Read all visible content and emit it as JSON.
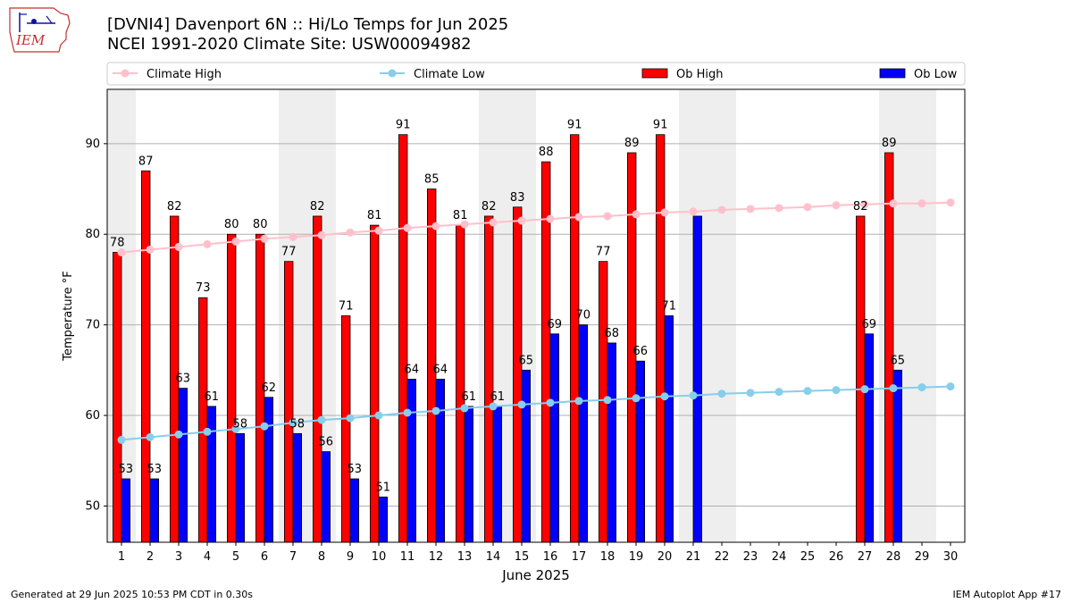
{
  "header": {
    "title_line1": "[DVNI4] Davenport 6N :: Hi/Lo Temps for Jun 2025",
    "title_line2": "NCEI 1991-2020 Climate Site: USW00094982",
    "logo_text": "IEM"
  },
  "footer": {
    "generated": "Generated at 29 Jun 2025 10:53 PM CDT in 0.30s",
    "app": "IEM Autoplot App #17"
  },
  "colors": {
    "ob_high": "#ff0000",
    "ob_low": "#0000ff",
    "climate_high": "#ffc0cb",
    "climate_low": "#87ceeb",
    "weekend_band": "#eeeeee",
    "grid": "#b0b0b0"
  },
  "chart_data": {
    "type": "bar",
    "xlabel": "June 2025",
    "ylabel": "Temperature °F",
    "ylim": [
      46,
      96
    ],
    "yticks": [
      50,
      60,
      70,
      80,
      90
    ],
    "grid": "horizontal",
    "legend_placement": "top",
    "categories": [
      1,
      2,
      3,
      4,
      5,
      6,
      7,
      8,
      9,
      10,
      11,
      12,
      13,
      14,
      15,
      16,
      17,
      18,
      19,
      20,
      21,
      22,
      23,
      24,
      25,
      26,
      27,
      28,
      29,
      30
    ],
    "weekend_days": [
      1,
      7,
      8,
      14,
      15,
      21,
      22,
      28,
      29
    ],
    "series": [
      {
        "name": "Climate High",
        "kind": "line",
        "values": [
          78.0,
          78.3,
          78.6,
          78.9,
          79.2,
          79.5,
          79.7,
          79.9,
          80.2,
          80.4,
          80.7,
          80.9,
          81.1,
          81.3,
          81.5,
          81.7,
          81.9,
          82.0,
          82.2,
          82.4,
          82.5,
          82.7,
          82.8,
          82.9,
          83.0,
          83.2,
          83.3,
          83.4,
          83.4,
          83.5
        ]
      },
      {
        "name": "Climate Low",
        "kind": "line",
        "values": [
          57.3,
          57.6,
          57.9,
          58.2,
          58.5,
          58.8,
          59.2,
          59.5,
          59.7,
          60.0,
          60.3,
          60.5,
          60.8,
          61.0,
          61.2,
          61.4,
          61.6,
          61.7,
          61.9,
          62.1,
          62.2,
          62.4,
          62.5,
          62.6,
          62.7,
          62.8,
          62.9,
          63.0,
          63.1,
          63.2
        ]
      },
      {
        "name": "Ob High",
        "kind": "bar",
        "values": [
          78,
          87,
          82,
          73,
          80,
          80,
          77,
          82,
          71,
          81,
          91,
          85,
          81,
          82,
          83,
          88,
          91,
          77,
          89,
          91,
          null,
          null,
          null,
          null,
          null,
          null,
          82,
          89,
          null,
          null
        ]
      },
      {
        "name": "Ob Low",
        "kind": "bar",
        "values": [
          53,
          53,
          63,
          61,
          58,
          62,
          58,
          56,
          53,
          51,
          64,
          64,
          61,
          61,
          65,
          69,
          70,
          68,
          66,
          71,
          82,
          null,
          null,
          null,
          null,
          null,
          69,
          65,
          null,
          null
        ]
      }
    ],
    "bar_labels": {
      "Ob High": [
        78,
        87,
        82,
        73,
        80,
        80,
        77,
        82,
        71,
        81,
        91,
        85,
        81,
        82,
        83,
        88,
        91,
        77,
        89,
        91,
        null,
        null,
        null,
        null,
        null,
        null,
        82,
        89,
        null,
        null
      ],
      "Ob Low": [
        53,
        53,
        63,
        61,
        58,
        62,
        58,
        56,
        53,
        51,
        64,
        64,
        61,
        61,
        65,
        69,
        70,
        68,
        66,
        71,
        null,
        null,
        null,
        null,
        null,
        null,
        69,
        65,
        null,
        null
      ]
    }
  }
}
